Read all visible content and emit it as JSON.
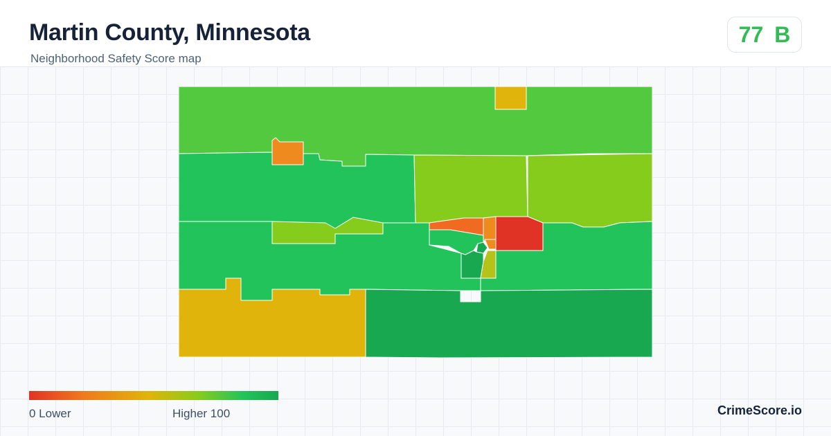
{
  "header": {
    "title": "Martin County, Minnesota",
    "subtitle": "Neighborhood Safety Score map"
  },
  "score": {
    "value": "77",
    "grade": "B",
    "color": "#33bb55"
  },
  "legend": {
    "low_text": "0  Lower",
    "high_text": "Higher  100",
    "colors": [
      "#e03325",
      "#ef7a1f",
      "#e0b40a",
      "#86cc1c",
      "#22c35a",
      "#18a850"
    ]
  },
  "brand": "CrimeScore.io",
  "map": {
    "colors": {
      "light_green": "#52c93f",
      "green": "#22c35a",
      "dark_green": "#18a850",
      "yellow_green": "#86cc1c",
      "olive": "#b5c21a",
      "gold": "#e0b40a",
      "orange": "#ef8a1f",
      "red_orange": "#f06a22",
      "red": "#e03325"
    }
  }
}
